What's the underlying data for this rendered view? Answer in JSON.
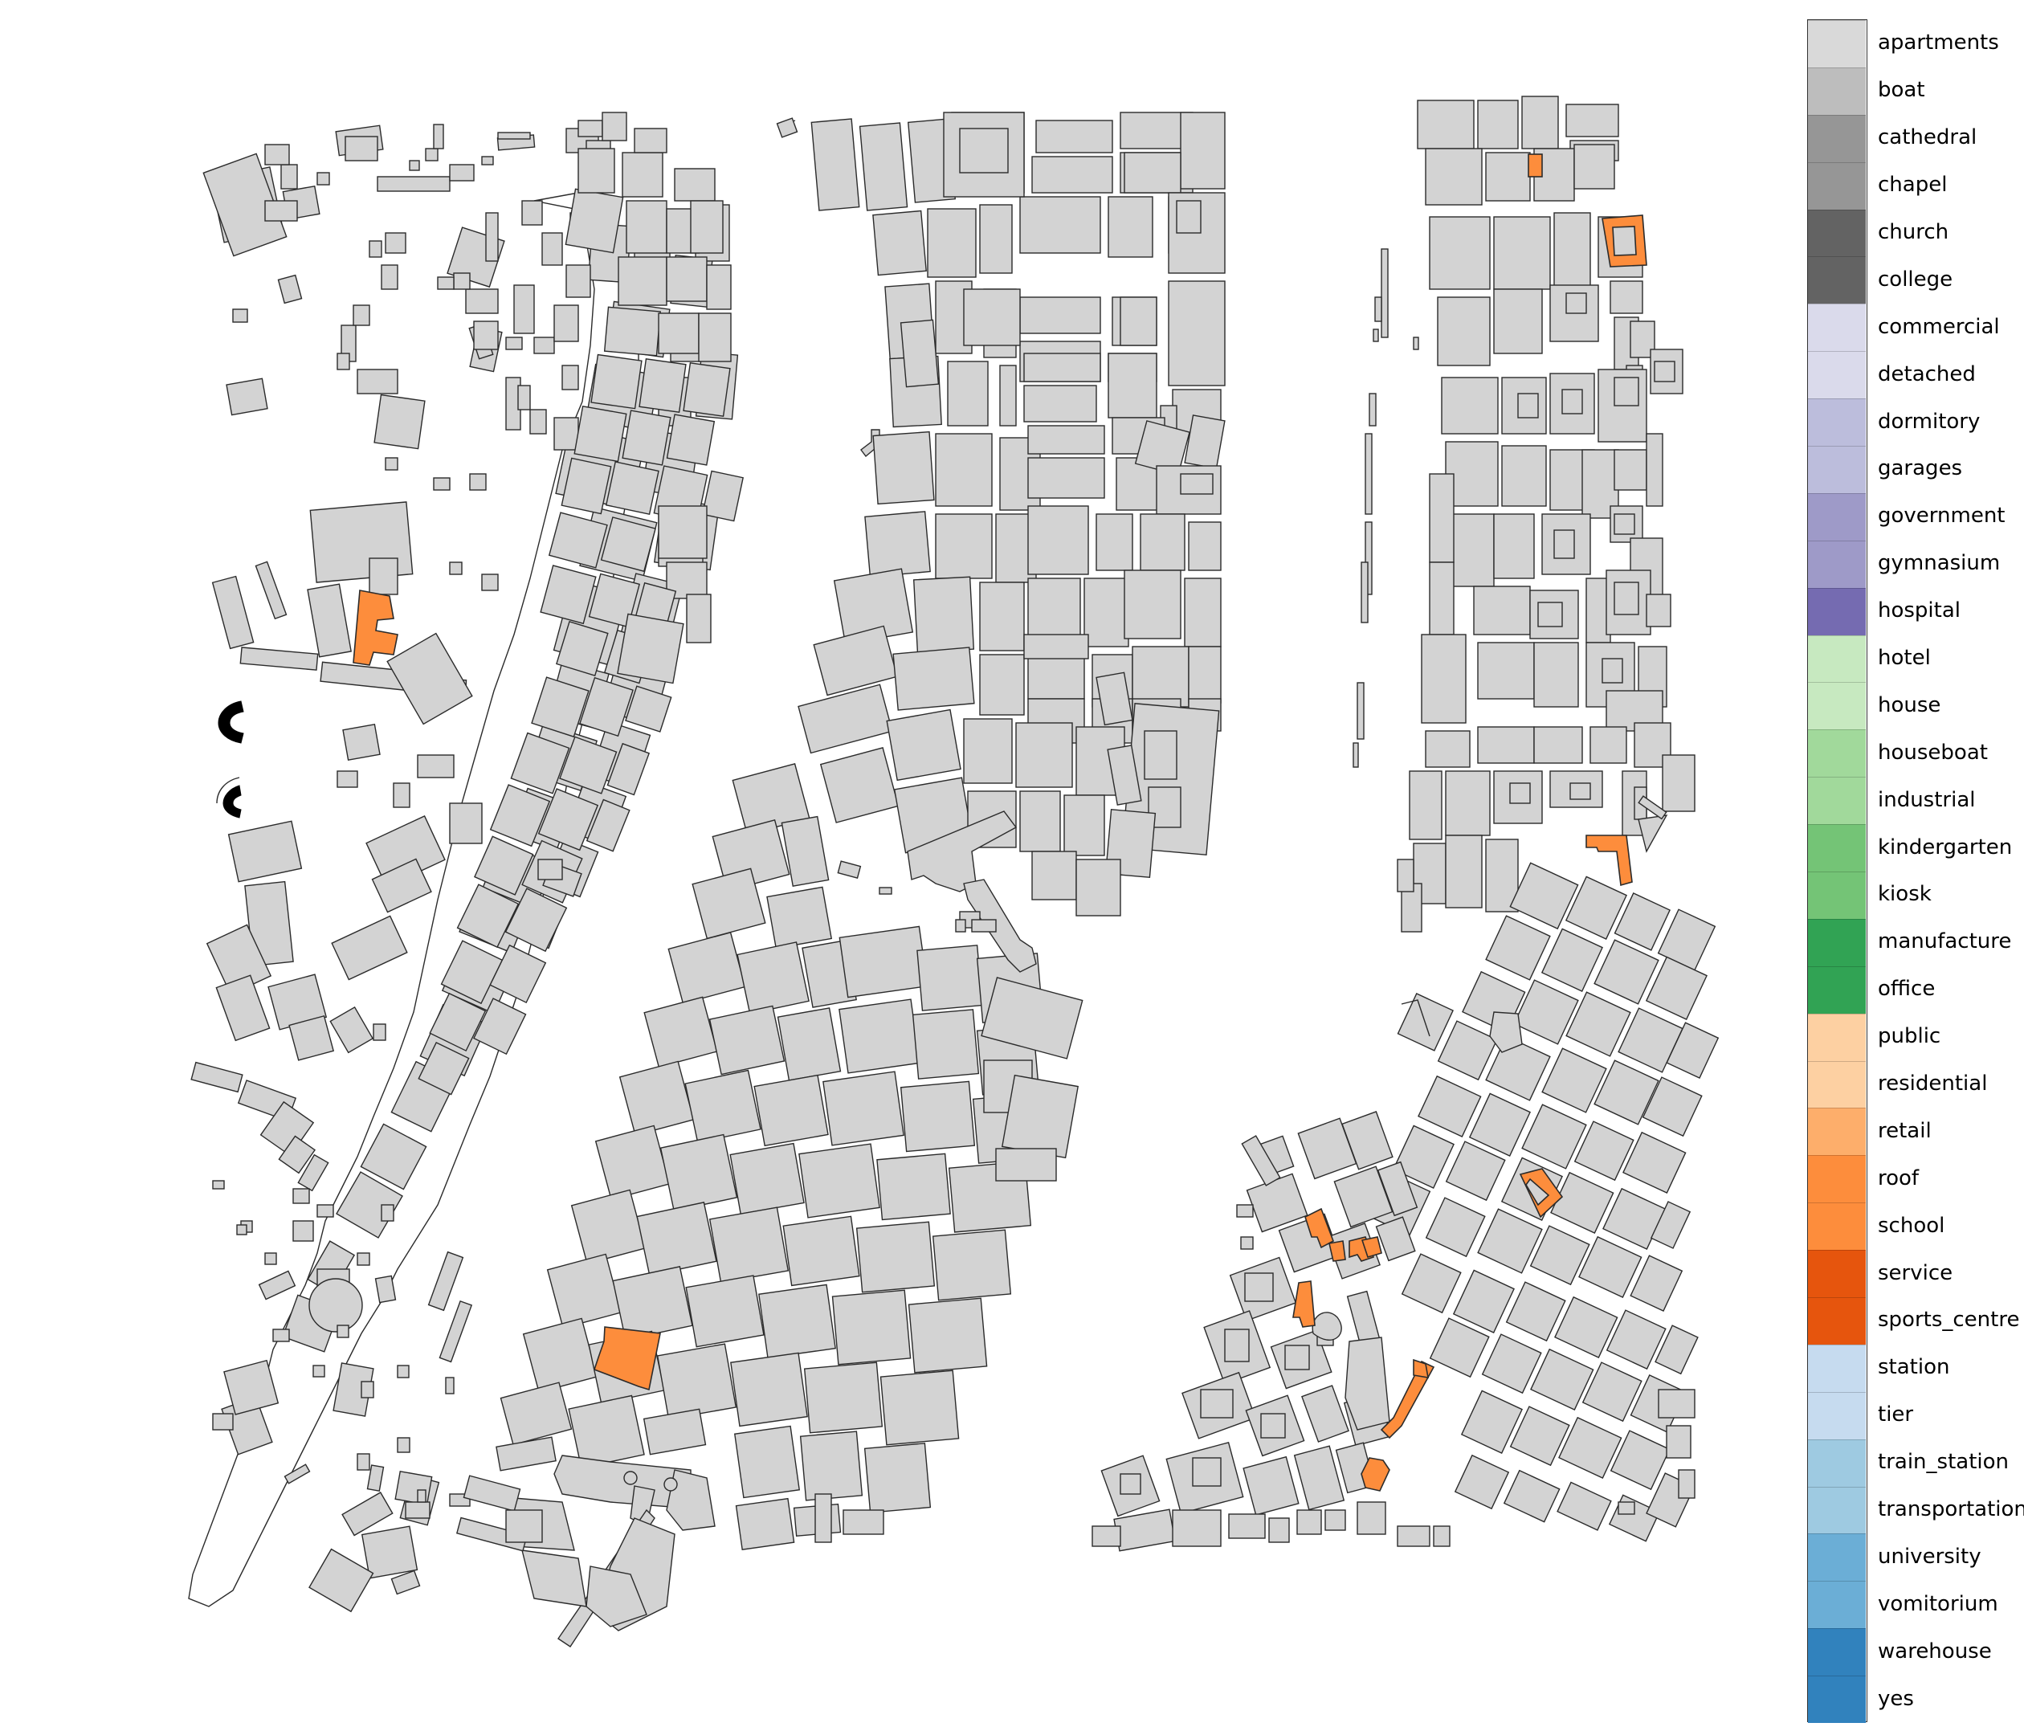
{
  "legend": {
    "entries": [
      {
        "label": "apartments",
        "color": "#d9d9d9"
      },
      {
        "label": "boat",
        "color": "#bdbdbd"
      },
      {
        "label": "cathedral",
        "color": "#969696"
      },
      {
        "label": "chapel",
        "color": "#969696"
      },
      {
        "label": "church",
        "color": "#636363"
      },
      {
        "label": "college",
        "color": "#636363"
      },
      {
        "label": "commercial",
        "color": "#dadaeb"
      },
      {
        "label": "detached",
        "color": "#dadaeb"
      },
      {
        "label": "dormitory",
        "color": "#bcbddc"
      },
      {
        "label": "garages",
        "color": "#bcbddc"
      },
      {
        "label": "government",
        "color": "#9e9ac8"
      },
      {
        "label": "gymnasium",
        "color": "#9e9ac8"
      },
      {
        "label": "hospital",
        "color": "#756bb1"
      },
      {
        "label": "hotel",
        "color": "#c7e9c0"
      },
      {
        "label": "house",
        "color": "#c7e9c0"
      },
      {
        "label": "houseboat",
        "color": "#a1d99b"
      },
      {
        "label": "industrial",
        "color": "#a1d99b"
      },
      {
        "label": "kindergarten",
        "color": "#74c476"
      },
      {
        "label": "kiosk",
        "color": "#74c476"
      },
      {
        "label": "manufacture",
        "color": "#31a354"
      },
      {
        "label": "office",
        "color": "#31a354"
      },
      {
        "label": "public",
        "color": "#fdd0a2"
      },
      {
        "label": "residential",
        "color": "#fdd0a2"
      },
      {
        "label": "retail",
        "color": "#fdae6b"
      },
      {
        "label": "roof",
        "color": "#fd8d3c"
      },
      {
        "label": "school",
        "color": "#fd8d3c"
      },
      {
        "label": "service",
        "color": "#e6550d"
      },
      {
        "label": "sports_centre",
        "color": "#e6550d"
      },
      {
        "label": "station",
        "color": "#c6dbef"
      },
      {
        "label": "tier",
        "color": "#c6dbef"
      },
      {
        "label": "train_station",
        "color": "#9ecae1"
      },
      {
        "label": "transportation",
        "color": "#9ecae1"
      },
      {
        "label": "university",
        "color": "#6baed6"
      },
      {
        "label": "vomitorium",
        "color": "#6baed6"
      },
      {
        "label": "warehouse",
        "color": "#3182bd"
      },
      {
        "label": "yes",
        "color": "#3182bd"
      }
    ]
  },
  "map": {
    "building_fill": "#d3d3d3",
    "highlight_fill": "#fd8d3c",
    "dark_fill": "#000000",
    "edge_color": "#2b2b2b"
  }
}
